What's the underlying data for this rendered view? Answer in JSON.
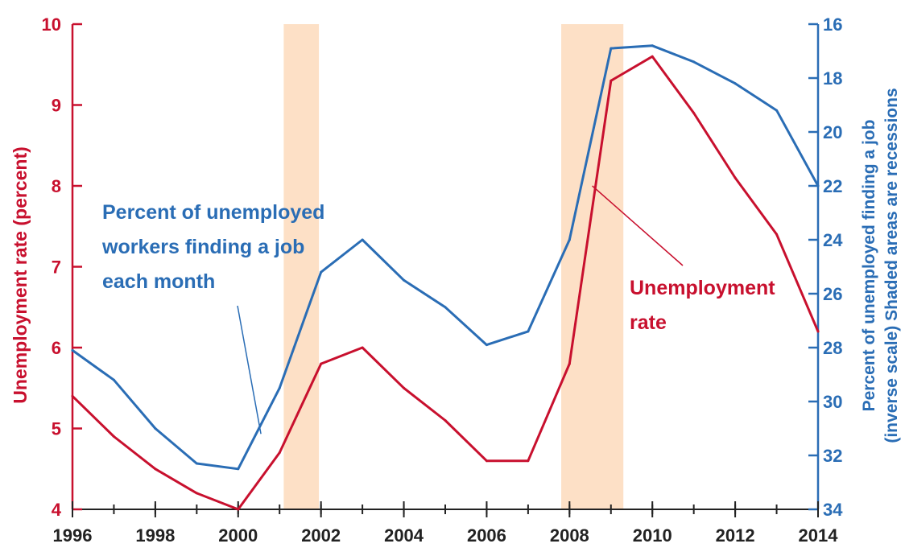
{
  "chart_data": {
    "type": "line",
    "title": "",
    "xlabel": "",
    "x": [
      1996,
      1997,
      1998,
      1999,
      2000,
      2001,
      2002,
      2003,
      2004,
      2005,
      2006,
      2007,
      2008,
      2009,
      2010,
      2011,
      2012,
      2013,
      2014
    ],
    "x_ticks": [
      1996,
      1998,
      2000,
      2002,
      2004,
      2006,
      2008,
      2010,
      2012,
      2014
    ],
    "xlim": [
      1996,
      2014
    ],
    "left_axis": {
      "label": "Unemployment rate (percent)",
      "ylim": [
        4,
        10
      ],
      "ticks": [
        4,
        5,
        6,
        7,
        8,
        9,
        10
      ],
      "color": "#c8102e"
    },
    "right_axis": {
      "label_line1": "Percent of unemployed finding a job",
      "label_line2": "(inverse scale) Shaded areas are recessions",
      "ylim": [
        34,
        16
      ],
      "inverted": true,
      "ticks": [
        16,
        18,
        20,
        22,
        24,
        26,
        28,
        30,
        32,
        34
      ],
      "color": "#2a6db5"
    },
    "series": [
      {
        "axis": "left",
        "color": "#c8102e",
        "values": [
          5.4,
          4.9,
          4.5,
          4.2,
          4.0,
          4.7,
          5.8,
          6.0,
          5.5,
          5.1,
          4.6,
          4.6,
          5.8,
          9.3,
          9.6,
          8.9,
          8.1,
          7.4,
          6.2
        ]
      },
      {
        "axis": "right",
        "color": "#2a6db5",
        "values": [
          28.1,
          29.2,
          31.0,
          32.3,
          32.5,
          29.5,
          25.2,
          24.0,
          25.5,
          26.5,
          27.9,
          27.4,
          24.0,
          16.9,
          16.8,
          17.4,
          18.2,
          19.2,
          22.0
        ]
      }
    ],
    "recessions": [
      [
        2001.1,
        2001.95
      ],
      [
        2007.8,
        2009.3
      ]
    ],
    "recession_color": "#fde0c6",
    "annotations": [
      {
        "id": "job-finding",
        "lines": [
          "Percent of unemployed",
          "workers finding a job",
          "each month"
        ],
        "color": "#2a6db5",
        "arrow_to": [
          2000.55,
          31.2
        ]
      },
      {
        "id": "unemployment",
        "lines": [
          "Unemployment",
          "rate"
        ],
        "color": "#c8102e",
        "arrow_to": [
          2008.55,
          8.0
        ]
      }
    ]
  }
}
